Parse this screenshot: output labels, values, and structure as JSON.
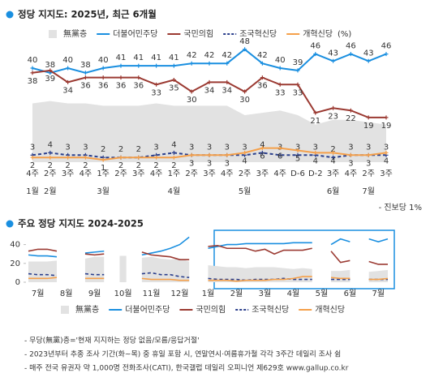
{
  "chart_data": [
    {
      "type": "line",
      "title": "정당 지지도: 2025년, 최근 6개월",
      "unit_note": "(%)",
      "legend": "top",
      "annotation": "- 진보당 1%",
      "categories": [
        "4주",
        "2주",
        "3주",
        "4주",
        "1주",
        "2주",
        "3주",
        "4주",
        "1주",
        "2주",
        "3주",
        "4주",
        "2주",
        "3주",
        "4주",
        "D-6",
        "D-2",
        "3주",
        "4주",
        "2주",
        "3주"
      ],
      "month_labels": [
        "1월",
        "2월",
        null,
        null,
        "3월",
        null,
        null,
        null,
        "4월",
        null,
        null,
        null,
        "5월",
        null,
        null,
        null,
        null,
        "6월",
        null,
        "7월",
        null
      ],
      "ylim": [
        0,
        50
      ],
      "show_values": true,
      "series": [
        {
          "name": "無黨층",
          "color": "#e2e2e2",
          "kind": "area",
          "values": [
            25,
            26,
            25,
            25,
            24,
            24,
            24,
            25,
            24,
            24,
            24,
            24,
            20,
            21,
            22,
            20,
            16,
            18,
            18,
            17,
            16
          ]
        },
        {
          "name": "더불어민주당",
          "color": "#1a8fe0",
          "kind": "line",
          "label_pos": "above",
          "values": [
            40,
            38,
            40,
            38,
            40,
            41,
            41,
            41,
            41,
            42,
            42,
            42,
            48,
            42,
            40,
            39,
            46,
            43,
            46,
            43,
            46
          ]
        },
        {
          "name": "국민의힘",
          "color": "#9b3a32",
          "kind": "line",
          "label_pos": "below",
          "values": [
            38,
            39,
            34,
            36,
            36,
            36,
            36,
            33,
            35,
            30,
            34,
            34,
            30,
            36,
            33,
            33,
            21,
            23,
            22,
            19,
            19
          ]
        },
        {
          "name": "조국혁신당",
          "color": "#2b3f8c",
          "kind": "line",
          "line_style": "dashed",
          "label_pos": "above",
          "values": [
            3,
            4,
            3,
            3,
            2,
            2,
            2,
            3,
            4,
            3,
            3,
            3,
            3,
            4,
            3,
            3,
            3,
            2,
            3,
            3,
            3
          ]
        },
        {
          "name": "개혁신당",
          "color": "#f5a04a",
          "kind": "line",
          "label_pos": "below",
          "values": [
            2,
            2,
            2,
            2,
            1,
            2,
            2,
            2,
            2,
            3,
            3,
            3,
            4,
            6,
            6,
            5,
            4,
            4,
            3,
            3,
            4
          ]
        }
      ]
    },
    {
      "type": "line",
      "title": "주요 정당 지지도 2024-2025",
      "legend": "bottom",
      "categories": [
        null,
        "7월",
        null,
        null,
        "8월",
        null,
        null,
        "9월",
        null,
        null,
        "10월",
        null,
        null,
        "11월",
        null,
        null,
        "12월",
        null,
        null,
        "1월",
        null,
        null,
        "2월",
        null,
        null,
        "3월",
        null,
        null,
        "4월",
        null,
        null,
        "5월",
        null,
        null,
        "6월",
        null,
        null,
        "7월",
        null
      ],
      "ylim": [
        0,
        50
      ],
      "yticks": [
        0,
        20,
        40
      ],
      "show_values": false,
      "series": [
        {
          "name": "無黨층",
          "color": "#e2e2e2",
          "kind": "area",
          "values": [
            22,
            22,
            22,
            23,
            null,
            null,
            25,
            27,
            27,
            null,
            28,
            null,
            26,
            27,
            25,
            24,
            25,
            22,
            null,
            18,
            17,
            16,
            16,
            15,
            16,
            16,
            16,
            15,
            14,
            15,
            14,
            null,
            12,
            12,
            13,
            null,
            11,
            12,
            13
          ]
        },
        {
          "name": "더불어민주당",
          "color": "#1a8fe0",
          "kind": "line",
          "values": [
            29,
            28,
            28,
            27,
            null,
            null,
            31,
            32,
            33,
            null,
            27,
            null,
            29,
            31,
            33,
            36,
            40,
            48,
            null,
            36,
            38,
            40,
            40,
            41,
            41,
            41,
            41,
            41,
            42,
            42,
            42,
            null,
            40,
            46,
            43,
            null,
            46,
            43,
            46
          ]
        },
        {
          "name": "국민의힘",
          "color": "#9b3a32",
          "kind": "line",
          "values": [
            33,
            35,
            35,
            33,
            null,
            null,
            30,
            29,
            30,
            null,
            27,
            null,
            32,
            29,
            28,
            27,
            24,
            24,
            null,
            38,
            39,
            36,
            36,
            36,
            33,
            35,
            30,
            34,
            34,
            34,
            36,
            null,
            33,
            21,
            23,
            null,
            22,
            19,
            19
          ]
        },
        {
          "name": "조국혁신당",
          "color": "#2b3f8c",
          "kind": "line",
          "line_style": "dashed",
          "values": [
            9,
            8,
            8,
            7,
            null,
            null,
            9,
            8,
            8,
            null,
            10,
            null,
            9,
            10,
            8,
            8,
            6,
            5,
            null,
            4,
            3,
            3,
            3,
            2,
            3,
            3,
            3,
            4,
            3,
            3,
            3,
            null,
            3,
            3,
            3,
            null,
            3,
            3,
            3
          ]
        },
        {
          "name": "개혁신당",
          "color": "#f5a04a",
          "kind": "line",
          "values": [
            4,
            4,
            4,
            5,
            null,
            null,
            4,
            4,
            4,
            null,
            3,
            null,
            4,
            3,
            3,
            3,
            2,
            2,
            null,
            2,
            2,
            2,
            1,
            2,
            2,
            2,
            3,
            3,
            4,
            6,
            6,
            null,
            5,
            4,
            4,
            null,
            3,
            3,
            4
          ]
        }
      ]
    }
  ],
  "notes": [
    "- 무당(無黨)층='현재 지지하는 정당 없음/모름/응답거절'",
    "- 2023년부터 추종 조사 기간(화~목) 중 휴일 포함 시, 연말연시·여름휴가철 각각 3주간 데일리 조사 쉼",
    "- 매주 전국 유권자 약 1,000명 전화조사(CATI), 한국갤럽 데일리 오피니언 제629호 www.gallup.co.kr"
  ]
}
